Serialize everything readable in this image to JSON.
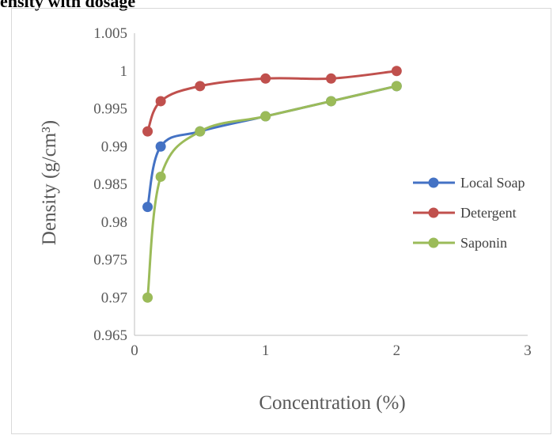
{
  "title": "ensity with dosage",
  "chart_data": {
    "type": "scatter",
    "title": "ensity with dosage",
    "xlabel": "Concentration (%)",
    "ylabel": "Density (g/cm³)",
    "xlim": [
      0,
      3
    ],
    "ylim": [
      0.965,
      1.005
    ],
    "x_ticks": [
      "0",
      "1",
      "2",
      "3"
    ],
    "y_ticks": [
      "0.965",
      "0.97",
      "0.975",
      "0.98",
      "0.985",
      "0.99",
      "0.995",
      "1",
      "1.005"
    ],
    "grid": false,
    "legend_position": "right",
    "series": [
      {
        "name": "Local Soap",
        "color": "#4472c4",
        "x": [
          0.1,
          0.2,
          0.5,
          1,
          1.5,
          2
        ],
        "y": [
          0.982,
          0.99,
          0.992,
          0.994,
          0.996,
          0.998
        ]
      },
      {
        "name": "Detergent",
        "color": "#c0504d",
        "x": [
          0.1,
          0.2,
          0.5,
          1,
          1.5,
          2
        ],
        "y": [
          0.992,
          0.996,
          0.998,
          0.999,
          0.999,
          1.0
        ]
      },
      {
        "name": "Saponin",
        "color": "#9bbb59",
        "x": [
          0.1,
          0.2,
          0.5,
          1,
          1.5,
          2
        ],
        "y": [
          0.97,
          0.986,
          0.992,
          0.994,
          0.996,
          0.998
        ]
      }
    ]
  }
}
